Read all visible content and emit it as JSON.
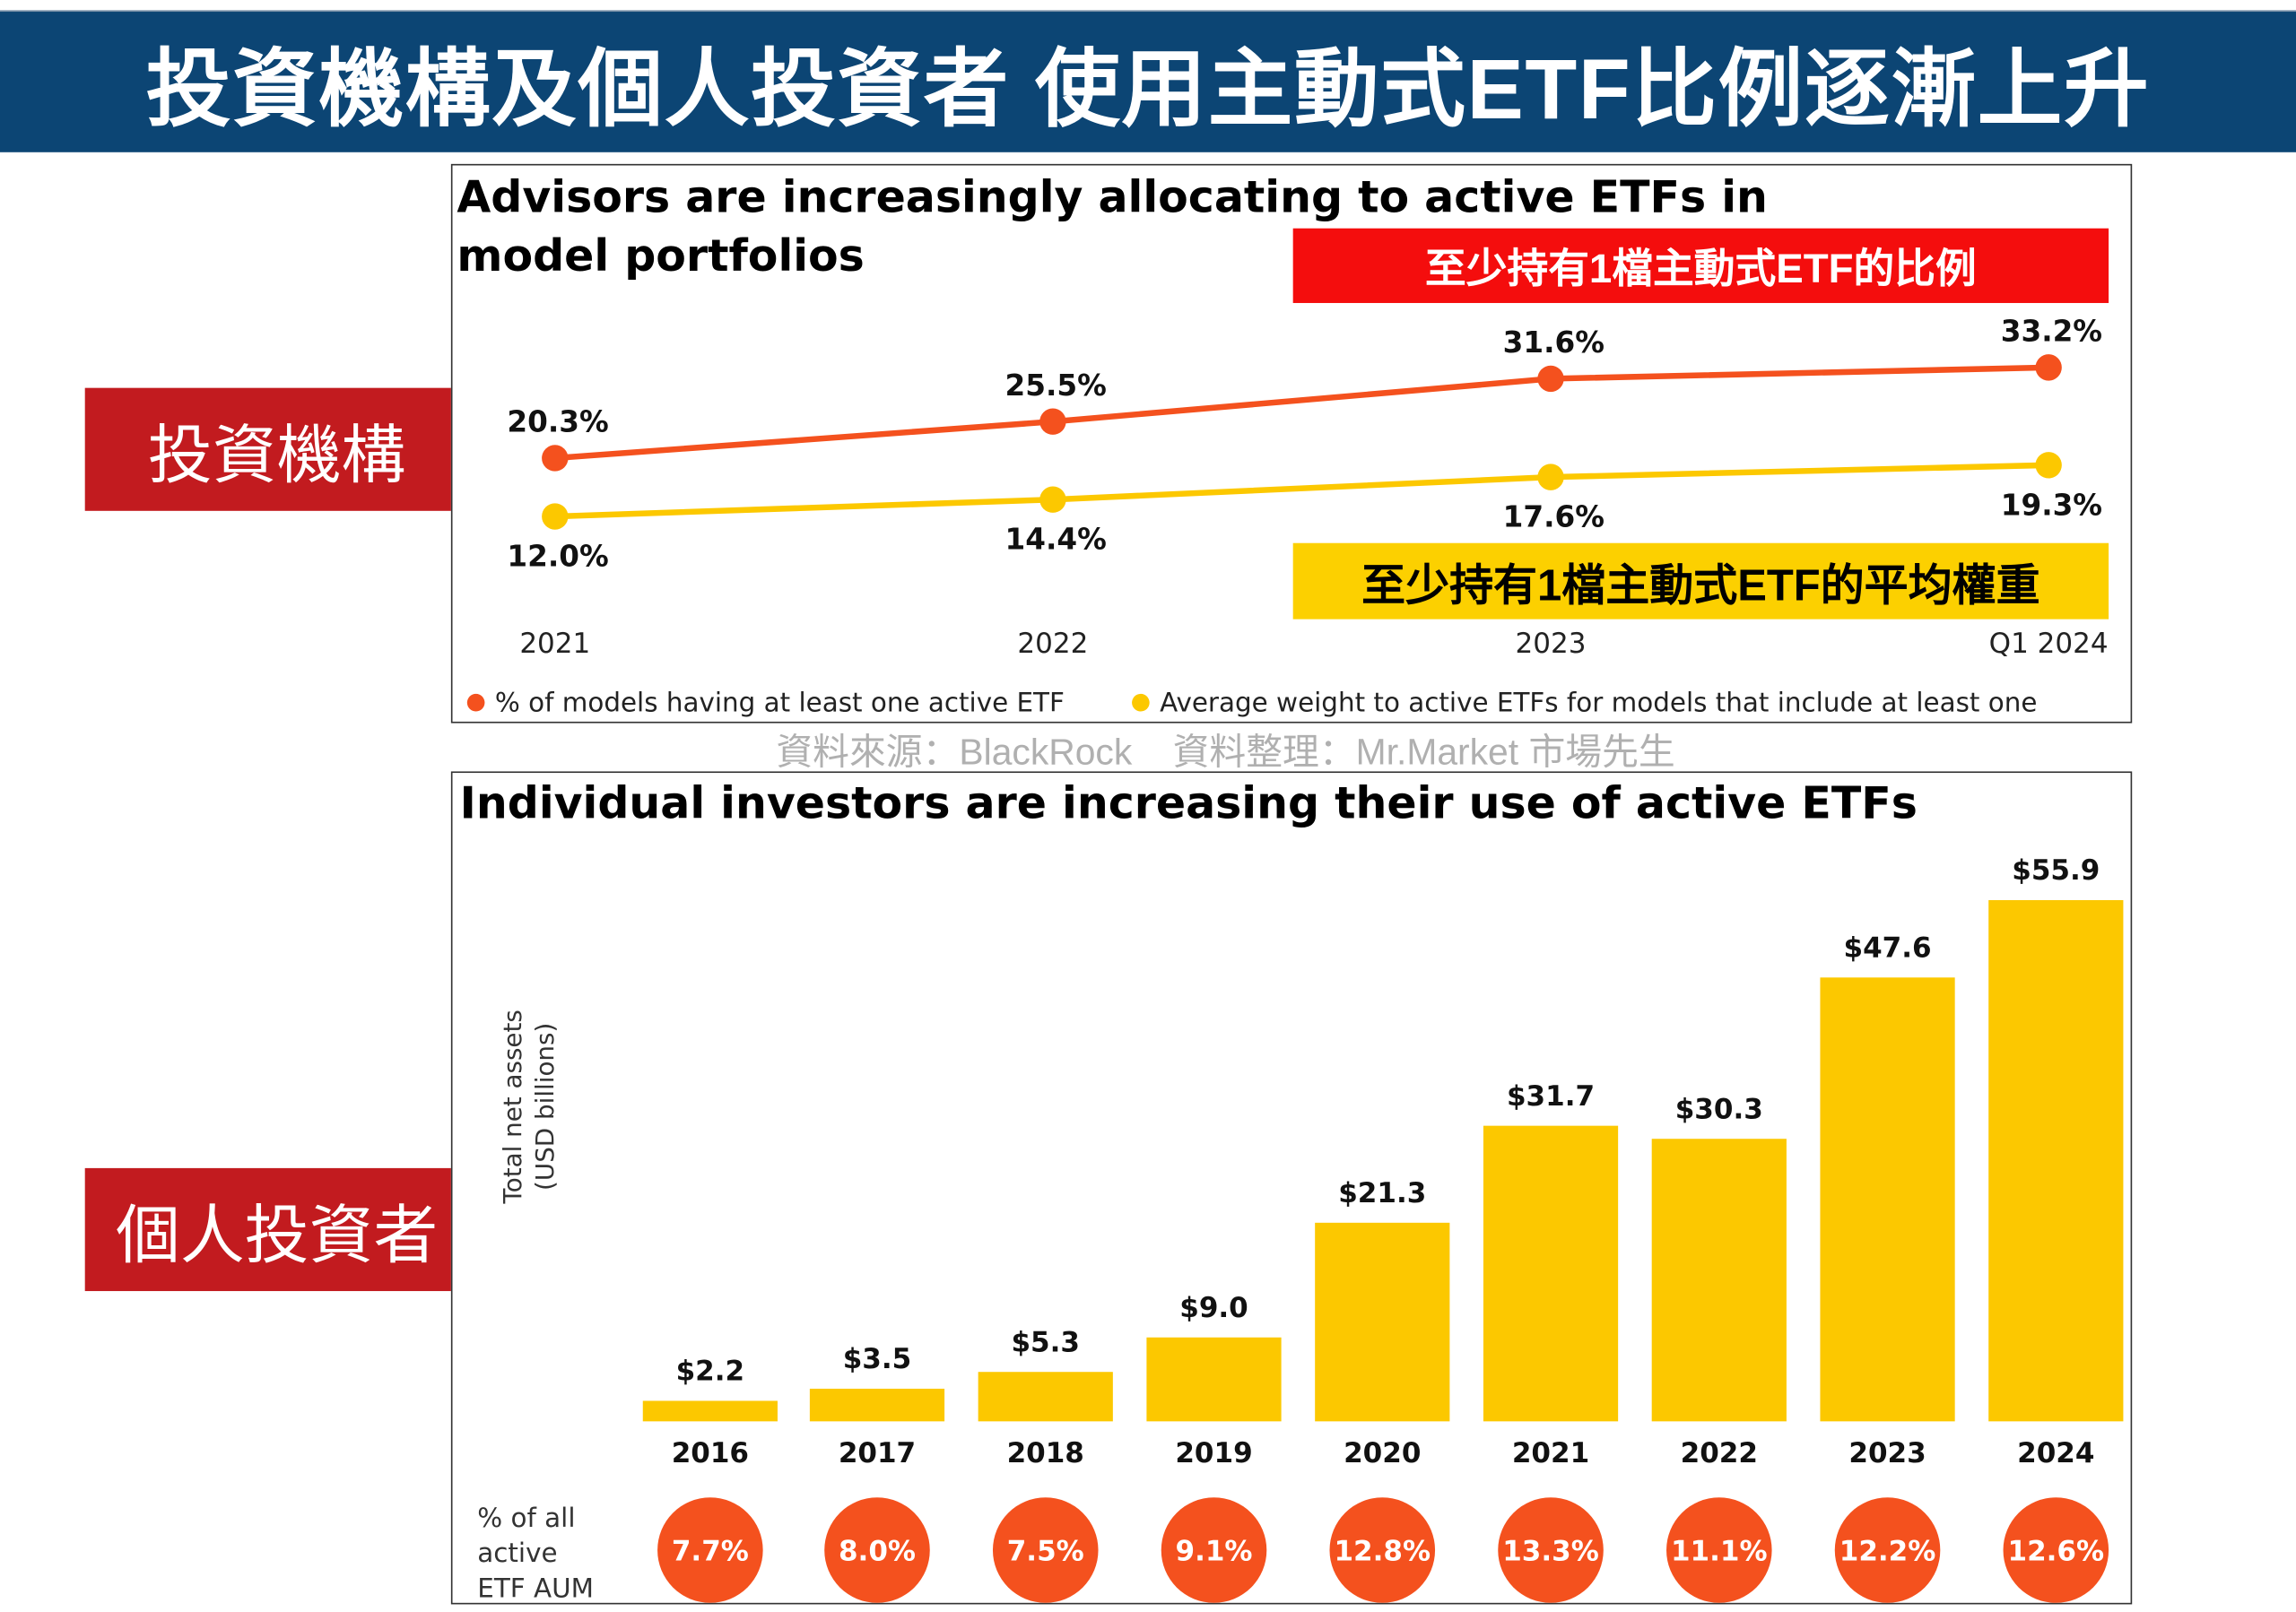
{
  "header": {
    "title": "投資機構及個人投資者 使用主動式ETF比例逐漸上升"
  },
  "side_labels": {
    "institutions": "投資機構",
    "individuals": "個人投資者"
  },
  "source_note": "資料來源：BlackRock    資料整理：Mr.Market 市場先生",
  "colors": {
    "title_bg": "#0c4574",
    "side_label_bg": "#c21b1f",
    "red_series": "#f4511e",
    "yellow_series": "#fcc800",
    "tag_red": "#f40d0d",
    "tag_yellow": "#fcd000"
  },
  "chart_data": [
    {
      "type": "line",
      "title": "Advisors are increasingly allocating to active ETFs in model portfolios",
      "categories": [
        "2021",
        "2022",
        "2023",
        "Q1 2024"
      ],
      "series": [
        {
          "name": "% of models having at least one active ETF",
          "values": [
            20.3,
            25.5,
            31.6,
            33.2
          ],
          "labels": [
            "20.3%",
            "25.5%",
            "31.6%",
            "33.2%"
          ],
          "color": "#f4511e",
          "annotation": "至少持有1檔主動式ETF的比例"
        },
        {
          "name": "Average weight to active ETFs for models that include at least one",
          "values": [
            12.0,
            14.4,
            17.6,
            19.3
          ],
          "labels": [
            "12.0%",
            "14.4%",
            "17.6%",
            "19.3%"
          ],
          "color": "#fcc800",
          "annotation": "至少持有1檔主動式ETF的平均權重"
        }
      ],
      "legend": "bottom",
      "grid": false
    },
    {
      "type": "bar",
      "title": "Individual investors are increasing their use of active ETFs",
      "ylabel": "Total net assets (USD billions)",
      "categories": [
        "2016",
        "2017",
        "2018",
        "2019",
        "2020",
        "2021",
        "2022",
        "2023",
        "2024"
      ],
      "values": [
        2.2,
        3.5,
        5.3,
        9.0,
        21.3,
        31.7,
        30.3,
        47.6,
        55.9
      ],
      "labels": [
        "$2.2",
        "$3.5",
        "$5.3",
        "$9.0",
        "$21.3",
        "$31.7",
        "$30.3",
        "$47.6",
        "$55.9"
      ],
      "color": "#fcc800",
      "share_row_label": [
        "% of all",
        "active",
        "ETF AUM"
      ],
      "share_values": [
        "7.7%",
        "8.0%",
        "7.5%",
        "9.1%",
        "12.8%",
        "13.3%",
        "11.1%",
        "12.2%",
        "12.6%"
      ],
      "share_color": "#f4511e",
      "grid": false
    }
  ]
}
